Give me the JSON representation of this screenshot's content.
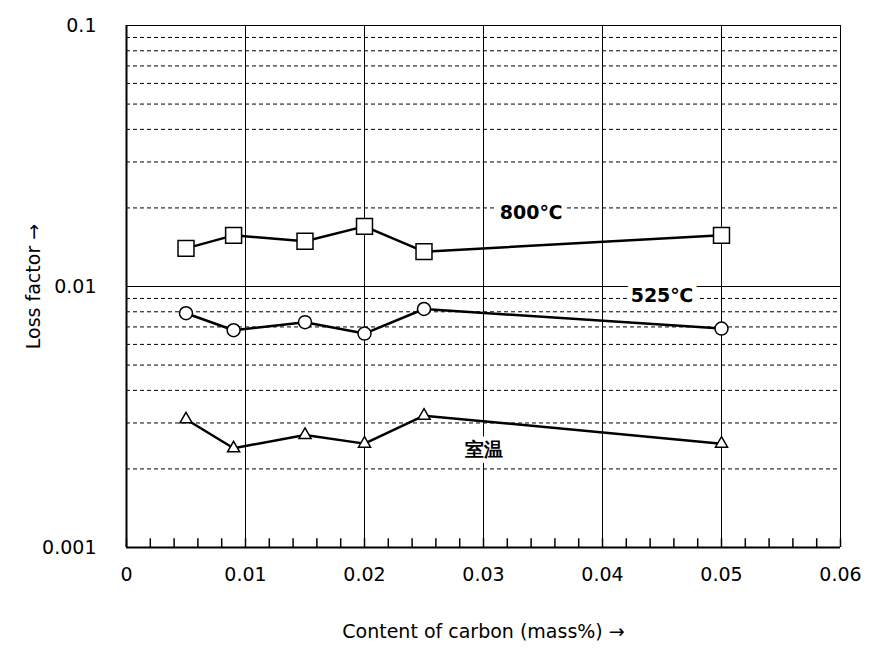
{
  "chart_data": {
    "type": "line",
    "x_label": "Content of carbon (mass%)",
    "y_label": "Loss factor",
    "x": [
      0.005,
      0.009,
      0.015,
      0.02,
      0.025,
      0.05
    ],
    "series": [
      {
        "name": "800℃",
        "color": "#000000",
        "marker": "square",
        "values": [
          0.014,
          0.0157,
          0.0149,
          0.017,
          0.0136,
          0.0157
        ]
      },
      {
        "name": "525℃",
        "color": "#000000",
        "marker": "circle",
        "values": [
          0.0079,
          0.0068,
          0.0073,
          0.0066,
          0.0082,
          0.0069
        ]
      },
      {
        "name": "室温",
        "color": "#000000",
        "marker": "triangle",
        "values": [
          0.0031,
          0.0024,
          0.0027,
          0.0025,
          0.0032,
          0.0025
        ]
      }
    ],
    "annotations": [
      {
        "text": "800℃",
        "x": 0.034,
        "y": 0.0192
      },
      {
        "text": "525℃",
        "x": 0.045,
        "y": 0.0092
      },
      {
        "text": "室温",
        "x": 0.03,
        "y": 0.00236
      }
    ],
    "xlim": [
      0,
      0.06
    ],
    "xticks": [
      0,
      0.01,
      0.02,
      0.03,
      0.04,
      0.05,
      0.06
    ],
    "ylim": [
      0.001,
      0.1
    ],
    "yticks": [
      0.001,
      0.01,
      0.1
    ],
    "log": "y",
    "grid": true
  }
}
